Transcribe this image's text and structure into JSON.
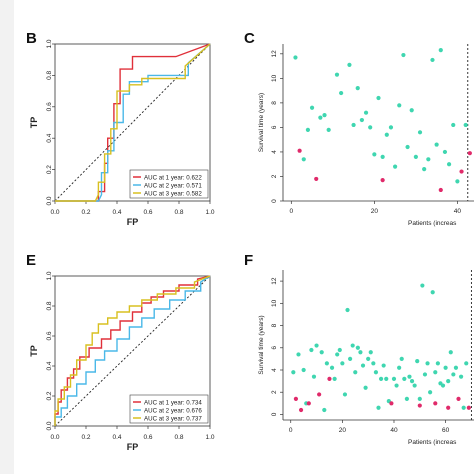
{
  "panels": {
    "B": "B",
    "C": "C",
    "E": "E",
    "F": "F"
  },
  "colors": {
    "red": "#e0303a",
    "blue": "#4ab8e8",
    "yellow": "#d8c020",
    "teal": "#3fd6b0",
    "pink": "#e02a6a"
  },
  "chart_data": [
    {
      "id": "B",
      "type": "line",
      "xlabel": "FP",
      "ylabel": "TP",
      "xlim": [
        0,
        1
      ],
      "ylim": [
        0,
        1
      ],
      "xticks": [
        "0.0",
        "0.2",
        "0.4",
        "0.6",
        "0.8",
        "1.0"
      ],
      "yticks": [
        "0.0",
        "0.2",
        "0.4",
        "0.6",
        "0.8",
        "1.0"
      ],
      "legend": {
        "placement": "bottom-right",
        "entries": [
          "AUC at 1 year: 0.622",
          "AUC at 2 year: 0.571",
          "AUC at 3 year: 0.582"
        ]
      },
      "series": [
        {
          "name": "AUC at 1 year: 0.622",
          "color": "red",
          "x": [
            0,
            0.28,
            0.28,
            0.32,
            0.32,
            0.34,
            0.34,
            0.38,
            0.38,
            0.42,
            0.42,
            0.5,
            0.5,
            0.78,
            0.78,
            1.0
          ],
          "y": [
            0,
            0,
            0.06,
            0.06,
            0.24,
            0.24,
            0.4,
            0.4,
            0.62,
            0.62,
            0.84,
            0.84,
            0.92,
            0.92,
            0.92,
            1.0
          ]
        },
        {
          "name": "AUC at 2 year: 0.571",
          "color": "blue",
          "x": [
            0,
            0.28,
            0.3,
            0.3,
            0.34,
            0.34,
            0.38,
            0.38,
            0.44,
            0.44,
            0.48,
            0.48,
            0.6,
            0.6,
            0.86,
            0.86,
            1.0
          ],
          "y": [
            0,
            0,
            0.04,
            0.18,
            0.18,
            0.32,
            0.32,
            0.5,
            0.5,
            0.68,
            0.68,
            0.76,
            0.76,
            0.8,
            0.8,
            0.88,
            1.0
          ]
        },
        {
          "name": "AUC at 3 year: 0.582",
          "color": "yellow",
          "x": [
            0,
            0.26,
            0.28,
            0.28,
            0.32,
            0.32,
            0.36,
            0.36,
            0.4,
            0.4,
            0.48,
            0.48,
            0.56,
            0.56,
            0.84,
            0.84,
            1.0
          ],
          "y": [
            0,
            0,
            0.04,
            0.12,
            0.12,
            0.3,
            0.3,
            0.46,
            0.46,
            0.7,
            0.7,
            0.74,
            0.74,
            0.78,
            0.78,
            0.86,
            1.0
          ]
        }
      ]
    },
    {
      "id": "C",
      "type": "scatter",
      "xlabel": "Patients (increas",
      "ylabel": "Survival time (years)",
      "xlim": [
        -2,
        44
      ],
      "ylim": [
        0,
        12.8
      ],
      "xticks": [
        "0",
        "20",
        "40"
      ],
      "xtick_values": [
        0,
        20,
        40
      ],
      "yticks": [
        "0",
        "2",
        "4",
        "6",
        "8",
        "10",
        "12"
      ],
      "ytick_values": [
        0,
        2,
        4,
        6,
        8,
        10,
        12
      ],
      "cutoff_x": 42.5,
      "series": [
        {
          "color": "teal",
          "x": [
            1,
            3,
            4,
            5,
            7,
            8,
            9,
            11,
            12,
            14,
            15,
            16,
            17,
            18,
            19,
            20,
            21,
            22,
            23,
            24,
            25,
            26,
            27,
            28,
            29,
            30,
            31,
            32,
            33,
            34,
            35,
            36,
            37,
            38,
            39,
            40,
            42
          ],
          "y": [
            11.7,
            3.4,
            5.8,
            7.6,
            6.8,
            7.0,
            5.8,
            10.3,
            8.8,
            11.1,
            6.2,
            9.2,
            6.6,
            7.2,
            6.0,
            3.8,
            8.4,
            3.6,
            5.4,
            6.0,
            2.8,
            7.8,
            11.9,
            4.4,
            7.4,
            3.6,
            5.6,
            2.6,
            3.4,
            11.5,
            4.6,
            12.3,
            4.0,
            3.0,
            6.2,
            1.6,
            6.2
          ]
        },
        {
          "color": "pink",
          "x": [
            2,
            6,
            22,
            36,
            41,
            43
          ],
          "y": [
            4.1,
            1.8,
            1.7,
            0.9,
            2.4,
            3.9
          ]
        }
      ]
    },
    {
      "id": "E",
      "type": "line",
      "xlabel": "FP",
      "ylabel": "TP",
      "xlim": [
        0,
        1
      ],
      "ylim": [
        0,
        1
      ],
      "xticks": [
        "0.0",
        "0.2",
        "0.4",
        "0.6",
        "0.8",
        "1.0"
      ],
      "yticks": [
        "0.0",
        "0.2",
        "0.4",
        "0.6",
        "0.8",
        "1.0"
      ],
      "legend": {
        "placement": "bottom-right",
        "entries": [
          "AUC at 1 year: 0.734",
          "AUC at 2 year: 0.676",
          "AUC at 3 year: 0.737"
        ]
      },
      "series": [
        {
          "name": "AUC at 1 year: 0.734",
          "color": "red",
          "x": [
            0,
            0,
            0.02,
            0.02,
            0.04,
            0.04,
            0.08,
            0.08,
            0.12,
            0.12,
            0.16,
            0.16,
            0.22,
            0.22,
            0.3,
            0.3,
            0.36,
            0.36,
            0.42,
            0.42,
            0.5,
            0.5,
            0.56,
            0.56,
            0.62,
            0.62,
            0.7,
            0.7,
            0.8,
            0.8,
            0.92,
            0.92,
            1.0
          ],
          "y": [
            0,
            0.08,
            0.08,
            0.16,
            0.16,
            0.24,
            0.24,
            0.32,
            0.32,
            0.38,
            0.38,
            0.46,
            0.46,
            0.52,
            0.52,
            0.58,
            0.58,
            0.64,
            0.64,
            0.7,
            0.7,
            0.76,
            0.76,
            0.82,
            0.82,
            0.86,
            0.86,
            0.9,
            0.9,
            0.94,
            0.94,
            0.98,
            1.0
          ]
        },
        {
          "name": "AUC at 2 year: 0.676",
          "color": "blue",
          "x": [
            0,
            0,
            0.04,
            0.04,
            0.08,
            0.08,
            0.14,
            0.14,
            0.2,
            0.2,
            0.26,
            0.26,
            0.32,
            0.32,
            0.4,
            0.4,
            0.48,
            0.48,
            0.56,
            0.56,
            0.64,
            0.64,
            0.74,
            0.74,
            0.84,
            0.84,
            0.94,
            0.94,
            1.0
          ],
          "y": [
            0,
            0.06,
            0.06,
            0.12,
            0.12,
            0.2,
            0.2,
            0.28,
            0.28,
            0.36,
            0.36,
            0.44,
            0.44,
            0.5,
            0.5,
            0.58,
            0.58,
            0.66,
            0.66,
            0.72,
            0.72,
            0.78,
            0.78,
            0.84,
            0.84,
            0.9,
            0.9,
            0.96,
            1.0
          ]
        },
        {
          "name": "AUC at 3 year: 0.737",
          "color": "yellow",
          "x": [
            0,
            0,
            0.02,
            0.02,
            0.06,
            0.06,
            0.1,
            0.1,
            0.14,
            0.14,
            0.2,
            0.2,
            0.24,
            0.24,
            0.28,
            0.28,
            0.34,
            0.34,
            0.4,
            0.4,
            0.48,
            0.48,
            0.56,
            0.56,
            0.66,
            0.66,
            0.78,
            0.78,
            0.9,
            0.9,
            1.0
          ],
          "y": [
            0,
            0.1,
            0.1,
            0.18,
            0.18,
            0.26,
            0.26,
            0.34,
            0.34,
            0.44,
            0.44,
            0.54,
            0.54,
            0.62,
            0.62,
            0.68,
            0.68,
            0.72,
            0.72,
            0.76,
            0.76,
            0.8,
            0.8,
            0.84,
            0.84,
            0.88,
            0.88,
            0.92,
            0.92,
            0.96,
            1.0
          ]
        }
      ]
    },
    {
      "id": "F",
      "type": "scatter",
      "xlabel": "Patients (increas",
      "ylabel": "Survival time (years)",
      "xlim": [
        -3,
        71
      ],
      "ylim": [
        -0.5,
        13
      ],
      "xticks": [
        "0",
        "20",
        "40",
        "60"
      ],
      "xtick_values": [
        0,
        20,
        40,
        60
      ],
      "yticks": [
        "0",
        "2",
        "4",
        "6",
        "8",
        "10",
        "12"
      ],
      "ytick_values": [
        0,
        2,
        4,
        6,
        8,
        10,
        12
      ],
      "cutoff_x": 70,
      "series": [
        {
          "color": "teal",
          "x": [
            1,
            3,
            5,
            6,
            8,
            9,
            10,
            12,
            13,
            14,
            16,
            17,
            18,
            19,
            20,
            21,
            22,
            23,
            24,
            25,
            26,
            27,
            28,
            29,
            30,
            31,
            32,
            33,
            34,
            35,
            36,
            37,
            38,
            40,
            41,
            42,
            43,
            44,
            45,
            46,
            47,
            48,
            49,
            50,
            51,
            52,
            53,
            54,
            55,
            56,
            57,
            58,
            59,
            60,
            61,
            62,
            63,
            64,
            66,
            67,
            68
          ],
          "y": [
            3.8,
            5.4,
            4.0,
            1.0,
            5.8,
            3.4,
            6.2,
            5.6,
            0.4,
            4.6,
            4.2,
            3.2,
            5.4,
            5.8,
            4.6,
            1.8,
            9.4,
            5.0,
            6.2,
            3.8,
            6.0,
            5.6,
            4.4,
            2.4,
            5.0,
            5.6,
            4.6,
            3.8,
            0.6,
            3.2,
            4.4,
            3.2,
            1.2,
            3.2,
            2.6,
            4.2,
            5.0,
            3.2,
            1.4,
            3.4,
            3.0,
            2.6,
            4.8,
            1.4,
            11.6,
            3.6,
            4.6,
            2.0,
            11.0,
            3.8,
            4.6,
            2.8,
            2.6,
            4.2,
            3.0,
            5.6,
            3.6,
            4.2,
            3.4,
            0.6,
            4.6
          ]
        },
        {
          "color": "pink",
          "x": [
            2,
            4,
            7,
            11,
            15,
            39,
            50,
            56,
            61,
            65,
            69
          ],
          "y": [
            1.4,
            0.4,
            1.0,
            1.8,
            3.2,
            1.0,
            0.8,
            1.0,
            0.6,
            1.4,
            0.6
          ]
        }
      ]
    }
  ]
}
